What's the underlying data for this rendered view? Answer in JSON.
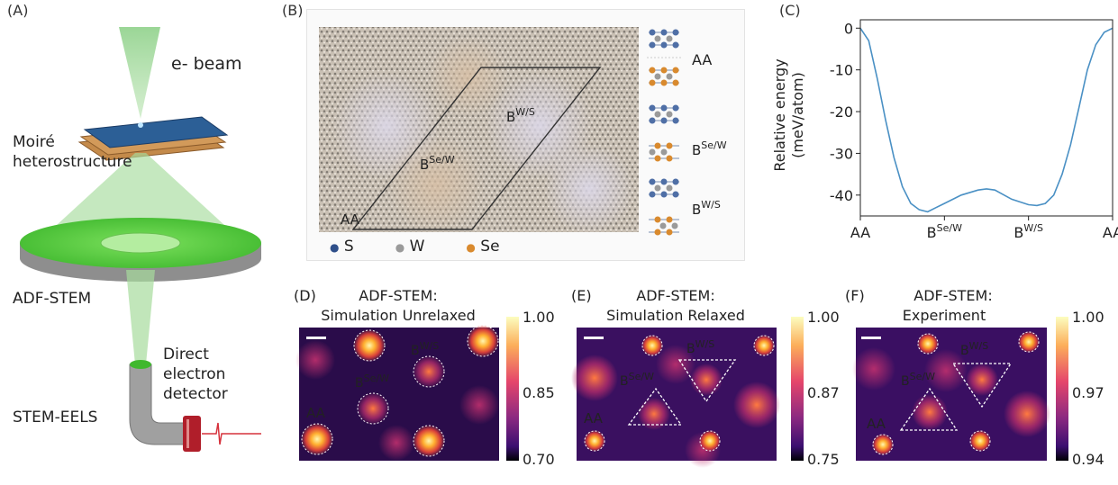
{
  "panels": {
    "a": {
      "label": "(A)",
      "beam": "e- beam",
      "sample_line1": "Moiré",
      "sample_line2": "heterostructure",
      "adf": "ADF-STEM",
      "detector_line1": "Direct",
      "detector_line2": "electron",
      "detector_line3": "detector",
      "eels": "STEM-EELS"
    },
    "b": {
      "label": "(B)",
      "bws_base": "B",
      "bws_sup": "W/S",
      "bsew_base": "B",
      "bsew_sup": "Se/W",
      "aa": "AA",
      "stack_aa": "AA",
      "stack_bsew_base": "B",
      "stack_bsew_sup": "Se/W",
      "stack_bws_base": "B",
      "stack_bws_sup": "W/S",
      "legend": [
        {
          "symbol": "●",
          "label": "S",
          "color": "#2f4f8a"
        },
        {
          "symbol": "●",
          "label": "W",
          "color": "#9a9a9a"
        },
        {
          "symbol": "●",
          "label": "Se",
          "color": "#d98a2e"
        }
      ]
    },
    "c": {
      "label": "(C)",
      "ylabel_line1": "Relative energy",
      "ylabel_line2": "(meV/atom)",
      "x_ticks": [
        {
          "base": "AA",
          "sup": ""
        },
        {
          "base": "B",
          "sup": "Se/W"
        },
        {
          "base": "B",
          "sup": "W/S"
        },
        {
          "base": "AA",
          "sup": ""
        }
      ]
    },
    "d": {
      "label": "(D)",
      "title_line1": "ADF-STEM:",
      "title_line2": "Simulation Unrelaxed",
      "bws_base": "B",
      "bws_sup": "W/S",
      "bsew_base": "B",
      "bsew_sup": "Se/W",
      "aa": "AA",
      "colorbar_ticks": [
        "1.00",
        "0.85",
        "0.70"
      ]
    },
    "e": {
      "label": "(E)",
      "title_line1": "ADF-STEM:",
      "title_line2": "Simulation Relaxed",
      "bws_base": "B",
      "bws_sup": "W/S",
      "bsew_base": "B",
      "bsew_sup": "Se/W",
      "aa": "AA",
      "colorbar_ticks": [
        "1.00",
        "0.87",
        "0.75"
      ]
    },
    "f": {
      "label": "(F)",
      "title_line1": "ADF-STEM:",
      "title_line2": "Experiment",
      "bws_base": "B",
      "bws_sup": "W/S",
      "bsew_base": "B",
      "bsew_sup": "Se/W",
      "aa": "AA",
      "colorbar_ticks": [
        "1.00",
        "0.97",
        "0.94"
      ]
    }
  },
  "chart_data": {
    "type": "line",
    "x_categories": [
      "AA",
      "B^Se/W",
      "B^W/S",
      "AA"
    ],
    "x": [
      0,
      0.1,
      0.2,
      0.3,
      0.4,
      0.5,
      0.6,
      0.7,
      0.8,
      0.9,
      1.0,
      1.2,
      1.4,
      1.5,
      1.6,
      1.8,
      2.0,
      2.1,
      2.2,
      2.3,
      2.4,
      2.5,
      2.6,
      2.7,
      2.8,
      2.9,
      3.0
    ],
    "values": [
      0,
      -3,
      -12,
      -22,
      -31,
      -38,
      -42,
      -43.5,
      -44,
      -43,
      -42,
      -40,
      -38.8,
      -38.5,
      -38.8,
      -41,
      -42.3,
      -42.5,
      -42,
      -40,
      -35,
      -28,
      -19,
      -10,
      -4,
      -1,
      0
    ],
    "ylim": [
      -45,
      2
    ],
    "y_ticks": [
      0,
      -10,
      -20,
      -30,
      -40
    ],
    "xlabel": "",
    "ylabel": "Relative energy (meV/atom)",
    "line_color": "#4a90c4"
  }
}
